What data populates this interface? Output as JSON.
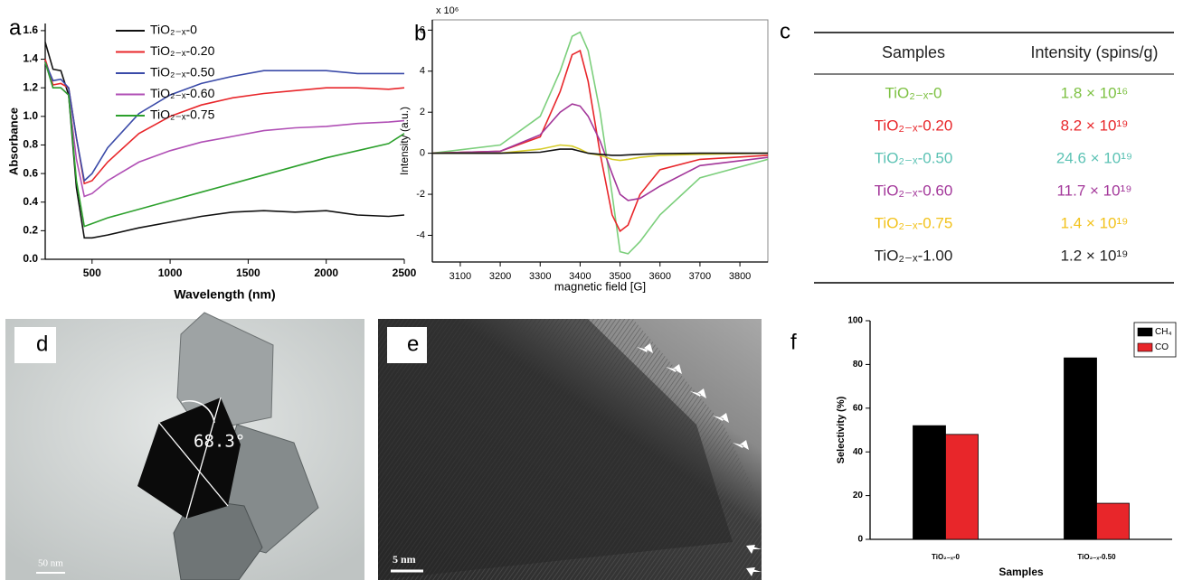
{
  "panel_labels": [
    "a",
    "b",
    "c",
    "d",
    "e",
    "f"
  ],
  "chart_data": [
    {
      "type": "line",
      "y_label": "Absorbance",
      "x_label": "Wavelength (nm)",
      "xlim": [
        200,
        2500
      ],
      "ylim": [
        0,
        1.65
      ],
      "xticks": [
        500,
        1000,
        1500,
        2000,
        2500
      ],
      "yticks": [
        {
          "value": 0,
          "label": "0.0"
        },
        0.2,
        0.4,
        0.6,
        0.8,
        {
          "value": 1,
          "label": "1.0"
        },
        1.2,
        1.4,
        1.6
      ],
      "legend": "upper-left",
      "x": [
        200,
        250,
        300,
        350,
        400,
        450,
        500,
        600,
        800,
        1000,
        1200,
        1400,
        1600,
        1800,
        2000,
        2200,
        2400,
        2500
      ],
      "series": [
        {
          "name": "TiO₂₋ₓ-0",
          "color": "#111111",
          "values": [
            1.52,
            1.33,
            1.32,
            1.15,
            0.5,
            0.15,
            0.15,
            0.17,
            0.22,
            0.26,
            0.3,
            0.33,
            0.34,
            0.33,
            0.34,
            0.31,
            0.3,
            0.31
          ]
        },
        {
          "name": "TiO₂₋ₓ-0.20",
          "color": "#e8262a",
          "values": [
            1.4,
            1.22,
            1.23,
            1.2,
            0.85,
            0.53,
            0.55,
            0.68,
            0.88,
            1.0,
            1.08,
            1.13,
            1.16,
            1.18,
            1.2,
            1.2,
            1.19,
            1.2
          ]
        },
        {
          "name": "TiO₂₋ₓ-0.50",
          "color": "#3a4aa8",
          "values": [
            1.38,
            1.25,
            1.26,
            1.2,
            0.85,
            0.55,
            0.6,
            0.78,
            1.02,
            1.15,
            1.23,
            1.28,
            1.32,
            1.32,
            1.32,
            1.3,
            1.3,
            1.3
          ]
        },
        {
          "name": "TiO₂₋ₓ-0.60",
          "color": "#b04fb5",
          "values": [
            1.38,
            1.2,
            1.2,
            1.15,
            0.7,
            0.44,
            0.46,
            0.55,
            0.68,
            0.76,
            0.82,
            0.86,
            0.9,
            0.92,
            0.93,
            0.95,
            0.96,
            0.97
          ]
        },
        {
          "name": "TiO₂₋ₓ-0.75",
          "color": "#2ca02c",
          "values": [
            1.38,
            1.2,
            1.2,
            1.15,
            0.55,
            0.23,
            0.25,
            0.29,
            0.35,
            0.41,
            0.47,
            0.53,
            0.59,
            0.65,
            0.71,
            0.76,
            0.81,
            0.88
          ]
        }
      ]
    },
    {
      "type": "line",
      "y_label": "Intensity (a.u.)",
      "x_label": "magnetic field [G]",
      "y_multiplier": "x 10⁶",
      "xlim": [
        3030,
        3870
      ],
      "ylim": [
        -5.3,
        6.5
      ],
      "xticks": [
        3100,
        3200,
        3300,
        3400,
        3500,
        3600,
        3700,
        3800
      ],
      "yticks": [
        -4,
        -2,
        0,
        2,
        4,
        6
      ],
      "x": [
        3030,
        3200,
        3300,
        3350,
        3380,
        3400,
        3420,
        3450,
        3480,
        3500,
        3520,
        3550,
        3600,
        3700,
        3870
      ],
      "series": [
        {
          "color": "#7ccf7c",
          "values": [
            0,
            0.4,
            1.8,
            4,
            5.7,
            5.9,
            5,
            2,
            -2,
            -4.8,
            -4.9,
            -4.3,
            -3,
            -1.2,
            -0.3
          ]
        },
        {
          "color": "#e8262a",
          "values": [
            0,
            0.1,
            0.8,
            3,
            4.8,
            5,
            3.5,
            0,
            -3,
            -3.8,
            -3.5,
            -2,
            -0.8,
            -0.3,
            -0.1
          ]
        },
        {
          "color": "#a3379a",
          "values": [
            0,
            0.1,
            0.9,
            2,
            2.4,
            2.3,
            1.8,
            0.6,
            -1,
            -2,
            -2.3,
            -2.2,
            -1.6,
            -0.6,
            -0.2
          ]
        },
        {
          "color": "#d6cc2a",
          "values": [
            0,
            0,
            0.2,
            0.4,
            0.35,
            0.2,
            0,
            -0.1,
            -0.3,
            -0.35,
            -0.3,
            -0.2,
            -0.1,
            -0.05,
            0
          ]
        },
        {
          "color": "#111111",
          "values": [
            0,
            0,
            0.05,
            0.2,
            0.2,
            0.1,
            0,
            -0.05,
            -0.1,
            -0.1,
            -0.08,
            -0.05,
            -0.02,
            0,
            0
          ]
        }
      ]
    },
    {
      "type": "bar",
      "y_label": "Selectivity (%)",
      "x_label": "Samples",
      "ylim": [
        0,
        100
      ],
      "yticks": [
        0,
        20,
        40,
        60,
        80,
        100
      ],
      "legend": "upper-right",
      "categories": [
        "TiO₂₋ₓ-0",
        "TiO₂₋ₓ-0.50"
      ],
      "series": [
        {
          "name": "CH₄",
          "color": "#000000",
          "values": [
            52,
            83
          ]
        },
        {
          "name": "CO",
          "color": "#e8262a",
          "values": [
            48,
            16.5
          ]
        }
      ]
    }
  ],
  "table": {
    "header": [
      "Samples",
      "Intensity (spins/g)"
    ],
    "rows": [
      [
        "TiO₂₋ₓ-0",
        "1.8 × 10¹⁶"
      ],
      [
        "TiO₂₋ₓ-0.20",
        "8.2 × 10¹⁹"
      ],
      [
        "TiO₂₋ₓ-0.50",
        "24.6 × 10¹⁹"
      ],
      [
        "TiO₂₋ₓ-0.60",
        "11.7 × 10¹⁹"
      ],
      [
        "TiO₂₋ₓ-0.75",
        "1.4 × 10¹⁹"
      ],
      [
        "TiO₂₋ₓ-1.00",
        "1.2 × 10¹⁹"
      ]
    ],
    "row_colors": [
      "#7dc142",
      "#e8262a",
      "#5bc2b4",
      "#a3379a",
      "#f2c21b",
      "#222222"
    ]
  },
  "images": [
    {
      "angle_label": "68.3°",
      "scale_bar": "50 nm"
    },
    {
      "scale_bar": "5 nm"
    }
  ]
}
